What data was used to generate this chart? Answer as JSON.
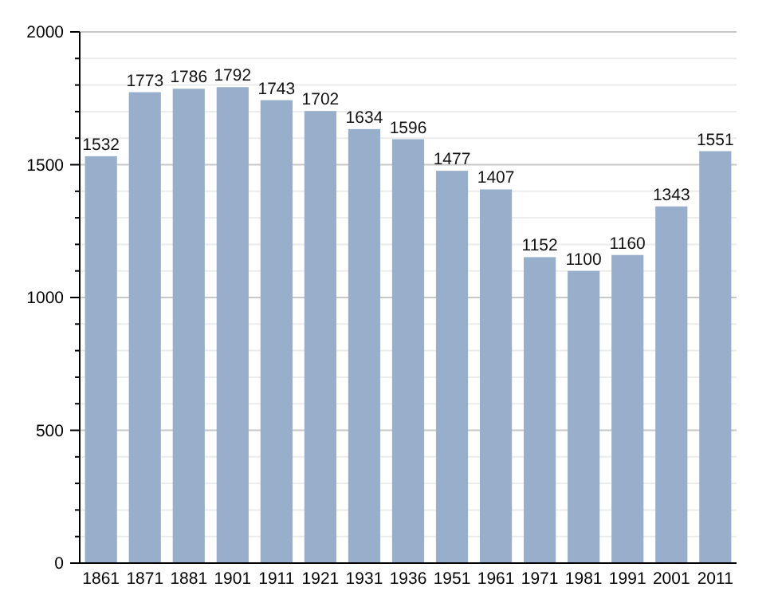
{
  "chart_data": {
    "type": "bar",
    "categories": [
      "1861",
      "1871",
      "1881",
      "1901",
      "1911",
      "1921",
      "1931",
      "1936",
      "1951",
      "1961",
      "1971",
      "1981",
      "1991",
      "2001",
      "2011"
    ],
    "values": [
      1532,
      1773,
      1786,
      1792,
      1743,
      1702,
      1634,
      1596,
      1477,
      1407,
      1152,
      1100,
      1160,
      1343,
      1551
    ],
    "color": "#97afcb",
    "ylim": [
      0,
      2000
    ],
    "yticks": [
      0,
      {
        "value": 100,
        "label": null
      },
      {
        "value": 200,
        "label": null
      },
      {
        "value": 300,
        "label": null
      },
      {
        "value": 400,
        "label": null
      },
      500,
      {
        "value": 600,
        "label": null
      },
      {
        "value": 700,
        "label": null
      },
      {
        "value": 800,
        "label": null
      },
      {
        "value": 900,
        "label": null
      },
      1000,
      {
        "value": 1100,
        "label": null
      },
      {
        "value": 1200,
        "label": null
      },
      {
        "value": 1300,
        "label": null
      },
      {
        "value": 1400,
        "label": null
      },
      1500,
      {
        "value": 1600,
        "label": null
      },
      {
        "value": 1700,
        "label": null
      },
      {
        "value": 1800,
        "label": null
      },
      {
        "value": 1900,
        "label": null
      },
      2000
    ],
    "grid": true,
    "data_labels": true
  }
}
